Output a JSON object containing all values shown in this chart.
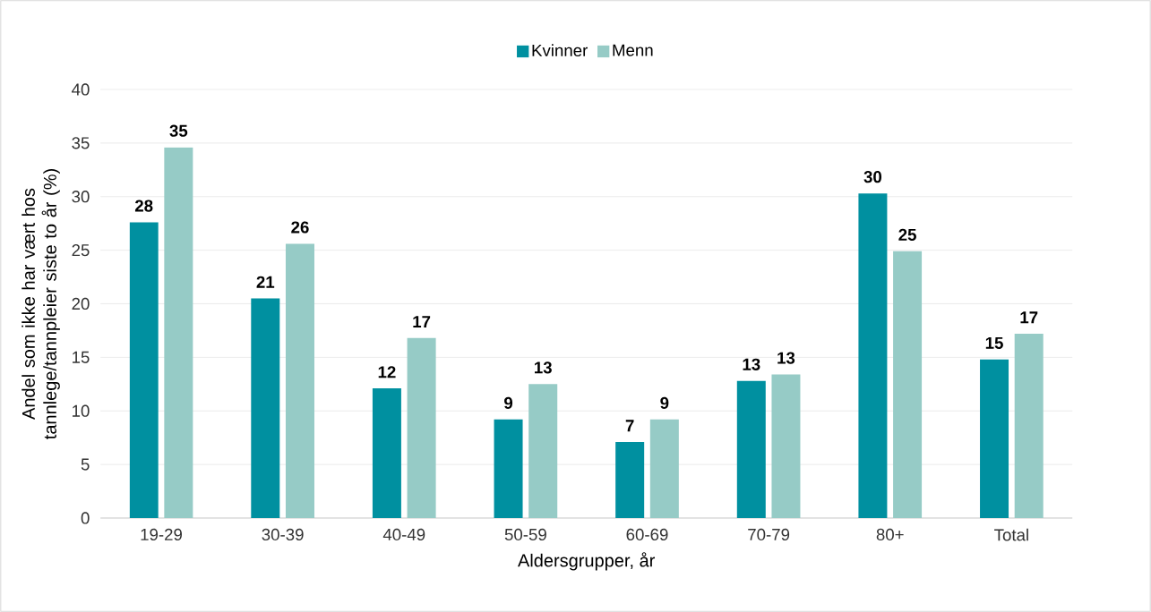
{
  "chart_data": {
    "type": "bar",
    "categories": [
      "19-29",
      "30-39",
      "40-49",
      "50-59",
      "60-69",
      "70-79",
      "80+",
      "Total"
    ],
    "series": [
      {
        "name": "Kvinner",
        "color": "#0090a0",
        "values": [
          27.6,
          20.5,
          12.1,
          9.2,
          7.1,
          12.8,
          30.3,
          14.8
        ],
        "value_labels": [
          "28",
          "21",
          "12",
          "9",
          "7",
          "13",
          "30",
          "15"
        ]
      },
      {
        "name": "Menn",
        "color": "#96cbc6",
        "values": [
          34.6,
          25.6,
          16.8,
          12.5,
          9.2,
          13.4,
          24.9,
          17.2
        ],
        "value_labels": [
          "35",
          "26",
          "17",
          "13",
          "9",
          "13",
          "25",
          "17"
        ]
      }
    ],
    "xlabel": "Aldersgrupper, år",
    "ylabel": "Andel som ikke har vært hos tannlege/tannpleier siste to år (%)",
    "ylim": [
      0,
      40
    ],
    "yticks": [
      0,
      5,
      10,
      15,
      20,
      25,
      30,
      35,
      40
    ],
    "grid": "y",
    "legend": "top"
  }
}
